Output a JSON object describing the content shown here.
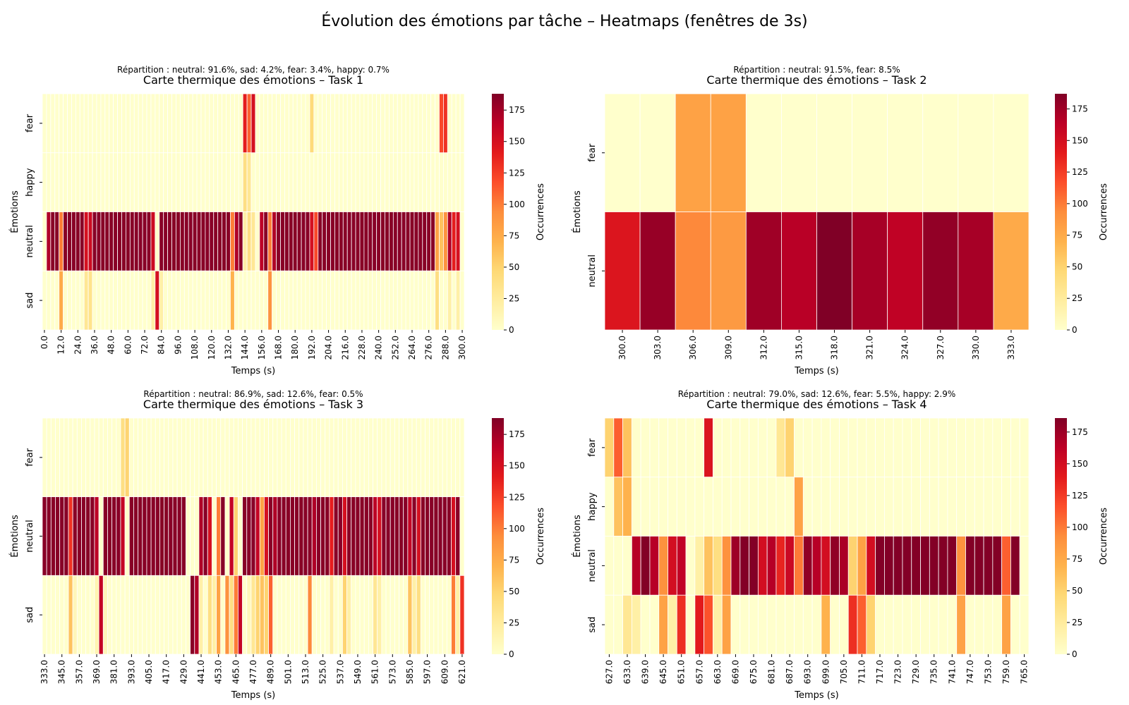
{
  "figure": {
    "title": "Évolution des émotions par tâche – Heatmaps (fenêtres de 3s)"
  },
  "colorscale": [
    "#ffffcc",
    "#ffeda0",
    "#fed976",
    "#feb24c",
    "#fd8d3c",
    "#fc4e2a",
    "#e31a1c",
    "#bd0026",
    "#800026"
  ],
  "chart_data": [
    {
      "type": "heatmap",
      "title": "Carte thermique des émotions – Task 1",
      "subtitle": "Répartition : neutral: 91.6%, sad: 4.2%, fear: 3.4%, happy: 0.7%",
      "xlabel": "Temps (s)",
      "ylabel": "Émotions",
      "colorbar_label": "Occurrences",
      "colorbar_ticks": [
        0,
        25,
        50,
        75,
        100,
        125,
        150,
        175
      ],
      "vmax": 188,
      "rows": [
        "fear",
        "happy",
        "neutral",
        "sad"
      ],
      "x_start": 0,
      "x_step": 3,
      "n_cols": 101,
      "x_tick_labels": [
        "0.0",
        "12.0",
        "24.0",
        "36.0",
        "48.0",
        "60.0",
        "72.0",
        "84.0",
        "96.0",
        "108.0",
        "120.0",
        "132.0",
        "144.0",
        "156.0",
        "168.0",
        "180.0",
        "192.0",
        "204.0",
        "216.0",
        "228.0",
        "240.0",
        "252.0",
        "264.0",
        "276.0",
        "288.0",
        "300.0"
      ],
      "x_tick_every": 4,
      "default_values": [
        0,
        0,
        185,
        0
      ],
      "special": [
        {
          "col": 0,
          "values": [
            0,
            0,
            0,
            0
          ]
        },
        {
          "col": 1,
          "values": [
            0,
            0,
            170,
            0
          ]
        },
        {
          "col": 4,
          "values": [
            0,
            0,
            100,
            75
          ]
        },
        {
          "col": 10,
          "values": [
            0,
            0,
            150,
            30
          ]
        },
        {
          "col": 11,
          "values": [
            0,
            0,
            155,
            35
          ]
        },
        {
          "col": 26,
          "values": [
            0,
            0,
            155,
            20
          ]
        },
        {
          "col": 27,
          "values": [
            0,
            0,
            0,
            150
          ]
        },
        {
          "col": 28,
          "values": [
            0,
            0,
            185,
            20
          ]
        },
        {
          "col": 45,
          "values": [
            0,
            0,
            100,
            70
          ]
        },
        {
          "col": 46,
          "values": [
            0,
            0,
            170,
            0
          ]
        },
        {
          "col": 48,
          "values": [
            140,
            40,
            20,
            0
          ]
        },
        {
          "col": 49,
          "values": [
            110,
            30,
            40,
            0
          ]
        },
        {
          "col": 50,
          "values": [
            150,
            0,
            30,
            0
          ]
        },
        {
          "col": 51,
          "values": [
            0,
            0,
            0,
            0
          ]
        },
        {
          "col": 52,
          "values": [
            0,
            0,
            165,
            0
          ]
        },
        {
          "col": 54,
          "values": [
            0,
            0,
            100,
            90
          ]
        },
        {
          "col": 55,
          "values": [
            0,
            0,
            170,
            0
          ]
        },
        {
          "col": 64,
          "values": [
            45,
            0,
            150,
            0
          ]
        },
        {
          "col": 65,
          "values": [
            0,
            0,
            120,
            0
          ]
        },
        {
          "col": 94,
          "values": [
            0,
            0,
            80,
            40
          ]
        },
        {
          "col": 95,
          "values": [
            120,
            0,
            60,
            0
          ]
        },
        {
          "col": 96,
          "values": [
            130,
            0,
            90,
            0
          ]
        },
        {
          "col": 97,
          "values": [
            0,
            0,
            170,
            20
          ]
        },
        {
          "col": 98,
          "values": [
            0,
            0,
            140,
            0
          ]
        },
        {
          "col": 99,
          "values": [
            0,
            0,
            150,
            20
          ]
        },
        {
          "col": 100,
          "values": [
            0,
            0,
            0,
            0
          ]
        }
      ]
    },
    {
      "type": "heatmap",
      "title": "Carte thermique des émotions – Task 2",
      "subtitle": "Répartition : neutral: 91.5%, fear: 8.5%",
      "xlabel": "Temps (s)",
      "ylabel": "Émotions",
      "colorbar_label": "Occurrences",
      "colorbar_ticks": [
        0,
        25,
        50,
        75,
        100,
        125,
        150,
        175
      ],
      "vmax": 187,
      "rows": [
        "fear",
        "neutral"
      ],
      "x_start": 300,
      "x_step": 3,
      "n_cols": 12,
      "x_tick_labels": [
        "300.0",
        "303.0",
        "306.0",
        "309.0",
        "312.0",
        "315.0",
        "318.0",
        "321.0",
        "324.0",
        "327.0",
        "330.0",
        "333.0"
      ],
      "x_tick_every": 1,
      "default_values": [
        0,
        170
      ],
      "special": [
        {
          "col": 0,
          "values": [
            0,
            145
          ]
        },
        {
          "col": 1,
          "values": [
            0,
            178
          ]
        },
        {
          "col": 2,
          "values": [
            80,
            95
          ]
        },
        {
          "col": 3,
          "values": [
            80,
            85
          ]
        },
        {
          "col": 4,
          "values": [
            0,
            175
          ]
        },
        {
          "col": 5,
          "values": [
            0,
            165
          ]
        },
        {
          "col": 6,
          "values": [
            0,
            187
          ]
        },
        {
          "col": 7,
          "values": [
            0,
            172
          ]
        },
        {
          "col": 8,
          "values": [
            0,
            162
          ]
        },
        {
          "col": 9,
          "values": [
            0,
            180
          ]
        },
        {
          "col": 10,
          "values": [
            0,
            172
          ]
        },
        {
          "col": 11,
          "values": [
            0,
            75
          ]
        }
      ]
    },
    {
      "type": "heatmap",
      "title": "Carte thermique des émotions – Task 3",
      "subtitle": "Répartition : neutral: 86.9%, sad: 12.6%, fear: 0.5%",
      "xlabel": "Temps (s)",
      "ylabel": "Émotions",
      "colorbar_label": "Occurrences",
      "colorbar_ticks": [
        0,
        25,
        50,
        75,
        100,
        125,
        150,
        175
      ],
      "vmax": 188,
      "rows": [
        "fear",
        "neutral",
        "sad"
      ],
      "x_start": 333,
      "x_step": 3,
      "n_cols": 97,
      "x_tick_labels": [
        "333.0",
        "345.0",
        "357.0",
        "369.0",
        "381.0",
        "393.0",
        "405.0",
        "417.0",
        "429.0",
        "441.0",
        "453.0",
        "465.0",
        "477.0",
        "489.0",
        "501.0",
        "513.0",
        "525.0",
        "537.0",
        "549.0",
        "561.0",
        "573.0",
        "585.0",
        "597.0",
        "609.0",
        "621.0"
      ],
      "x_tick_every": 4,
      "default_values": [
        0,
        185,
        0
      ],
      "special": [
        {
          "col": 6,
          "values": [
            0,
            130,
            60
          ]
        },
        {
          "col": 7,
          "values": [
            0,
            185,
            10
          ]
        },
        {
          "col": 12,
          "values": [
            0,
            165,
            15
          ]
        },
        {
          "col": 13,
          "values": [
            0,
            0,
            160
          ]
        },
        {
          "col": 14,
          "values": [
            0,
            185,
            10
          ]
        },
        {
          "col": 18,
          "values": [
            40,
            160,
            0
          ]
        },
        {
          "col": 19,
          "values": [
            50,
            0,
            0
          ]
        },
        {
          "col": 33,
          "values": [
            0,
            0,
            0
          ]
        },
        {
          "col": 34,
          "values": [
            0,
            0,
            185
          ]
        },
        {
          "col": 35,
          "values": [
            0,
            0,
            170
          ]
        },
        {
          "col": 36,
          "values": [
            0,
            170,
            20
          ]
        },
        {
          "col": 37,
          "values": [
            0,
            185,
            0
          ]
        },
        {
          "col": 38,
          "values": [
            0,
            150,
            40
          ]
        },
        {
          "col": 39,
          "values": [
            0,
            0,
            20
          ]
        },
        {
          "col": 40,
          "values": [
            0,
            100,
            80
          ]
        },
        {
          "col": 41,
          "values": [
            0,
            185,
            0
          ]
        },
        {
          "col": 42,
          "values": [
            0,
            0,
            90
          ]
        },
        {
          "col": 43,
          "values": [
            0,
            160,
            40
          ]
        },
        {
          "col": 44,
          "values": [
            0,
            50,
            100
          ]
        },
        {
          "col": 45,
          "values": [
            0,
            0,
            160
          ]
        },
        {
          "col": 46,
          "values": [
            0,
            185,
            0
          ]
        },
        {
          "col": 47,
          "values": [
            0,
            185,
            10
          ]
        },
        {
          "col": 48,
          "values": [
            0,
            185,
            30
          ]
        },
        {
          "col": 49,
          "values": [
            0,
            160,
            50
          ]
        },
        {
          "col": 50,
          "values": [
            0,
            80,
            60
          ]
        },
        {
          "col": 51,
          "values": [
            0,
            150,
            50
          ]
        },
        {
          "col": 52,
          "values": [
            0,
            185,
            110
          ]
        },
        {
          "col": 53,
          "values": [
            0,
            170,
            0
          ]
        },
        {
          "col": 61,
          "values": [
            0,
            185,
            95
          ]
        },
        {
          "col": 62,
          "values": [
            0,
            170,
            0
          ]
        },
        {
          "col": 66,
          "values": [
            0,
            140,
            20
          ]
        },
        {
          "col": 69,
          "values": [
            0,
            150,
            50
          ]
        },
        {
          "col": 70,
          "values": [
            0,
            185,
            20
          ]
        },
        {
          "col": 76,
          "values": [
            0,
            165,
            30
          ]
        },
        {
          "col": 77,
          "values": [
            0,
            150,
            20
          ]
        },
        {
          "col": 78,
          "values": [
            0,
            185,
            0
          ]
        },
        {
          "col": 84,
          "values": [
            0,
            160,
            60
          ]
        },
        {
          "col": 85,
          "values": [
            0,
            185,
            20
          ]
        },
        {
          "col": 86,
          "values": [
            0,
            150,
            40
          ]
        },
        {
          "col": 94,
          "values": [
            0,
            150,
            100
          ]
        },
        {
          "col": 95,
          "values": [
            0,
            185,
            20
          ]
        },
        {
          "col": 96,
          "values": [
            0,
            0,
            130
          ]
        }
      ]
    },
    {
      "type": "heatmap",
      "title": "Carte thermique des émotions – Task 4",
      "subtitle": "Répartition : neutral: 79.0%, sad: 12.6%, fear: 5.5%, happy: 2.9%",
      "xlabel": "Temps (s)",
      "ylabel": "Émotions",
      "colorbar_label": "Occurrences",
      "colorbar_ticks": [
        0,
        25,
        50,
        75,
        100,
        125,
        150,
        175
      ],
      "vmax": 186,
      "rows": [
        "fear",
        "happy",
        "neutral",
        "sad"
      ],
      "x_start": 627,
      "x_step": 3,
      "n_cols": 47,
      "x_tick_labels": [
        "627.0",
        "633.0",
        "639.0",
        "645.0",
        "651.0",
        "657.0",
        "663.0",
        "669.0",
        "675.0",
        "681.0",
        "687.0",
        "693.0",
        "699.0",
        "705.0",
        "711.0",
        "717.0",
        "723.0",
        "729.0",
        "735.0",
        "741.0",
        "747.0",
        "753.0",
        "759.0",
        "765.0"
      ],
      "x_tick_every": 2,
      "default_values": [
        0,
        0,
        185,
        0
      ],
      "special": [
        {
          "col": 0,
          "values": [
            50,
            0,
            0,
            0
          ]
        },
        {
          "col": 1,
          "values": [
            110,
            60,
            0,
            0
          ]
        },
        {
          "col": 2,
          "values": [
            60,
            70,
            0,
            30
          ]
        },
        {
          "col": 3,
          "values": [
            0,
            0,
            165,
            20
          ]
        },
        {
          "col": 4,
          "values": [
            0,
            0,
            185,
            0
          ]
        },
        {
          "col": 5,
          "values": [
            0,
            0,
            165,
            0
          ]
        },
        {
          "col": 6,
          "values": [
            0,
            0,
            90,
            80
          ]
        },
        {
          "col": 7,
          "values": [
            0,
            0,
            150,
            20
          ]
        },
        {
          "col": 8,
          "values": [
            0,
            0,
            160,
            130
          ]
        },
        {
          "col": 9,
          "values": [
            0,
            0,
            0,
            0
          ]
        },
        {
          "col": 10,
          "values": [
            0,
            0,
            20,
            140
          ]
        },
        {
          "col": 11,
          "values": [
            145,
            0,
            60,
            115
          ]
        },
        {
          "col": 12,
          "values": [
            0,
            0,
            40,
            20
          ]
        },
        {
          "col": 13,
          "values": [
            0,
            0,
            90,
            80
          ]
        },
        {
          "col": 14,
          "values": [
            0,
            0,
            175,
            0
          ]
        },
        {
          "col": 17,
          "values": [
            0,
            0,
            150,
            0
          ]
        },
        {
          "col": 18,
          "values": [
            0,
            0,
            165,
            0
          ]
        },
        {
          "col": 19,
          "values": [
            30,
            0,
            135,
            0
          ]
        },
        {
          "col": 20,
          "values": [
            50,
            0,
            155,
            0
          ]
        },
        {
          "col": 21,
          "values": [
            0,
            80,
            100,
            0
          ]
        },
        {
          "col": 22,
          "values": [
            0,
            0,
            180,
            0
          ]
        },
        {
          "col": 23,
          "values": [
            0,
            0,
            165,
            0
          ]
        },
        {
          "col": 24,
          "values": [
            0,
            0,
            150,
            70
          ]
        },
        {
          "col": 25,
          "values": [
            0,
            0,
            180,
            0
          ]
        },
        {
          "col": 26,
          "values": [
            0,
            0,
            170,
            0
          ]
        },
        {
          "col": 27,
          "values": [
            0,
            0,
            50,
            130
          ]
        },
        {
          "col": 28,
          "values": [
            0,
            0,
            80,
            110
          ]
        },
        {
          "col": 29,
          "values": [
            0,
            0,
            150,
            50
          ]
        },
        {
          "col": 39,
          "values": [
            0,
            0,
            90,
            80
          ]
        },
        {
          "col": 44,
          "values": [
            0,
            0,
            110,
            80
          ]
        },
        {
          "col": 45,
          "values": [
            0,
            0,
            185,
            0
          ]
        },
        {
          "col": 46,
          "values": [
            0,
            0,
            0,
            0
          ]
        }
      ]
    }
  ]
}
